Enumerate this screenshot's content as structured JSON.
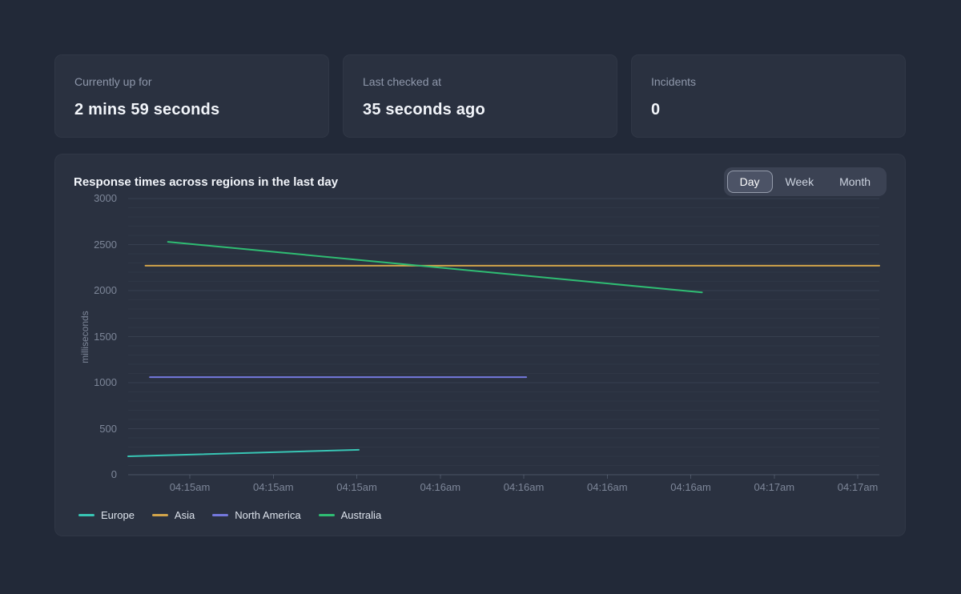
{
  "stats": [
    {
      "label": "Currently up for",
      "value": "2 mins 59 seconds"
    },
    {
      "label": "Last checked at",
      "value": "35 seconds ago"
    },
    {
      "label": "Incidents",
      "value": "0"
    }
  ],
  "chart_card": {
    "title": "Response times across regions in the last day",
    "range_tabs": [
      {
        "label": "Day",
        "selected": true
      },
      {
        "label": "Week",
        "selected": false
      },
      {
        "label": "Month",
        "selected": false
      }
    ]
  },
  "chart_data": {
    "type": "line",
    "title": "Response times across regions in the last day",
    "xlabel": "",
    "ylabel": "milliseconds",
    "ylim": [
      0,
      3000
    ],
    "y_ticks": [
      0,
      500,
      1000,
      1500,
      2000,
      2500,
      3000
    ],
    "x_ticks": [
      "04:15am",
      "04:15am",
      "04:15am",
      "04:16am",
      "04:16am",
      "04:16am",
      "04:16am",
      "04:17am",
      "04:17am"
    ],
    "grid": "horizontal, minor every 100ms, major every 500ms",
    "legend_position": "bottom",
    "series": [
      {
        "name": "Europe",
        "color": "#38c5b4",
        "points": [
          {
            "x": 0.0,
            "y": 200
          },
          {
            "x": 0.307,
            "y": 270
          }
        ]
      },
      {
        "name": "Asia",
        "color": "#d2a44a",
        "points": [
          {
            "x": 0.023,
            "y": 2270
          },
          {
            "x": 1.0,
            "y": 2270
          }
        ]
      },
      {
        "name": "North America",
        "color": "#7478dd",
        "points": [
          {
            "x": 0.029,
            "y": 1060
          },
          {
            "x": 0.53,
            "y": 1060
          }
        ]
      },
      {
        "name": "Australia",
        "color": "#2fbd73",
        "points": [
          {
            "x": 0.053,
            "y": 2530
          },
          {
            "x": 0.764,
            "y": 1980
          }
        ]
      }
    ]
  },
  "colors": {
    "page_bg": "#222938",
    "card_bg": "#2a3140",
    "text_primary": "#f2f5fa",
    "text_muted": "#8f98ab",
    "axis_text": "#7d8698",
    "toggle_bg": "#3b4253",
    "toggle_selected_bg": "#4c5366"
  }
}
